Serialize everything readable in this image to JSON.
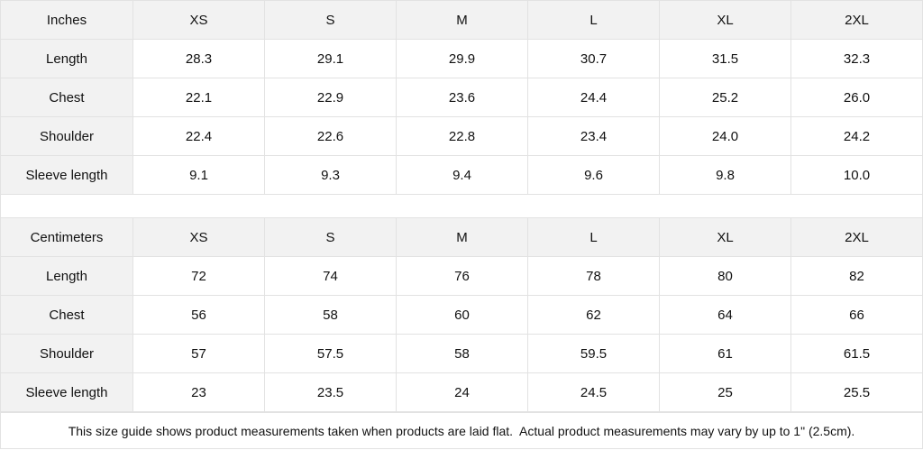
{
  "inches": {
    "header": [
      "Inches",
      "XS",
      "S",
      "M",
      "L",
      "XL",
      "2XL"
    ],
    "rows": [
      [
        "Length",
        "28.3",
        "29.1",
        "29.9",
        "30.7",
        "31.5",
        "32.3"
      ],
      [
        "Chest",
        "22.1",
        "22.9",
        "23.6",
        "24.4",
        "25.2",
        "26.0"
      ],
      [
        "Shoulder",
        "22.4",
        "22.6",
        "22.8",
        "23.4",
        "24.0",
        "24.2"
      ],
      [
        "Sleeve length",
        "9.1",
        "9.3",
        "9.4",
        "9.6",
        "9.8",
        "10.0"
      ]
    ]
  },
  "centimeters": {
    "header": [
      "Centimeters",
      "XS",
      "S",
      "M",
      "L",
      "XL",
      "2XL"
    ],
    "rows": [
      [
        "Length",
        "72",
        "74",
        "76",
        "78",
        "80",
        "82"
      ],
      [
        "Chest",
        "56",
        "58",
        "60",
        "62",
        "64",
        "66"
      ],
      [
        "Shoulder",
        "57",
        "57.5",
        "58",
        "59.5",
        "61",
        "61.5"
      ],
      [
        "Sleeve length",
        "23",
        "23.5",
        "24",
        "24.5",
        "25",
        "25.5"
      ]
    ]
  },
  "note": "This size guide shows product measurements taken when products are laid flat.  Actual product measurements may vary by up to 1\" (2.5cm)."
}
